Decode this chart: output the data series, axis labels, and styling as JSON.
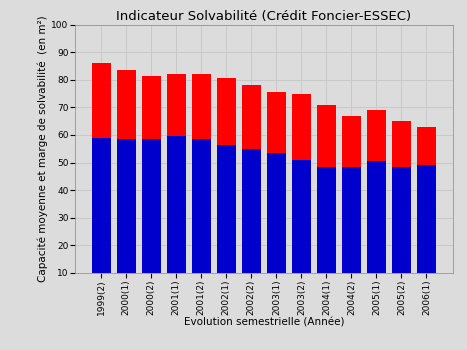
{
  "title": "Indicateur Solvabilité (Crédit Foncier-ESSEC)",
  "xlabel": "Evolution semestrielle (Année)",
  "ylabel": "Capacité moyenne et marge de solvabilité  (en m²)",
  "categories": [
    "1999(2)",
    "2000(1)",
    "2000(2)",
    "2001(1)",
    "2001(2)",
    "2002(1)",
    "2002(2)",
    "2003(1)",
    "2003(2)",
    "2004(1)",
    "2004(2)",
    "2005(1)",
    "2005(2)",
    "2006(1)"
  ],
  "blue_values": [
    59,
    58.5,
    58.5,
    59.5,
    58.5,
    56.5,
    55,
    53.5,
    51,
    48.5,
    48.5,
    50.5,
    48.5,
    49
  ],
  "total_values": [
    86,
    83.5,
    81.5,
    82,
    82,
    80.5,
    78,
    75.5,
    75,
    71,
    67,
    69,
    65,
    63
  ],
  "blue_color": "#0000cc",
  "red_color": "#ff0000",
  "ylim": [
    10,
    100
  ],
  "ymin": 10,
  "yticks": [
    10,
    20,
    30,
    40,
    50,
    60,
    70,
    80,
    90,
    100
  ],
  "bar_width": 0.75,
  "grid_color": "#c8c8c8",
  "bg_color": "#dcdcdc",
  "title_fontsize": 9.5,
  "label_fontsize": 7.5,
  "tick_fontsize": 6.5
}
